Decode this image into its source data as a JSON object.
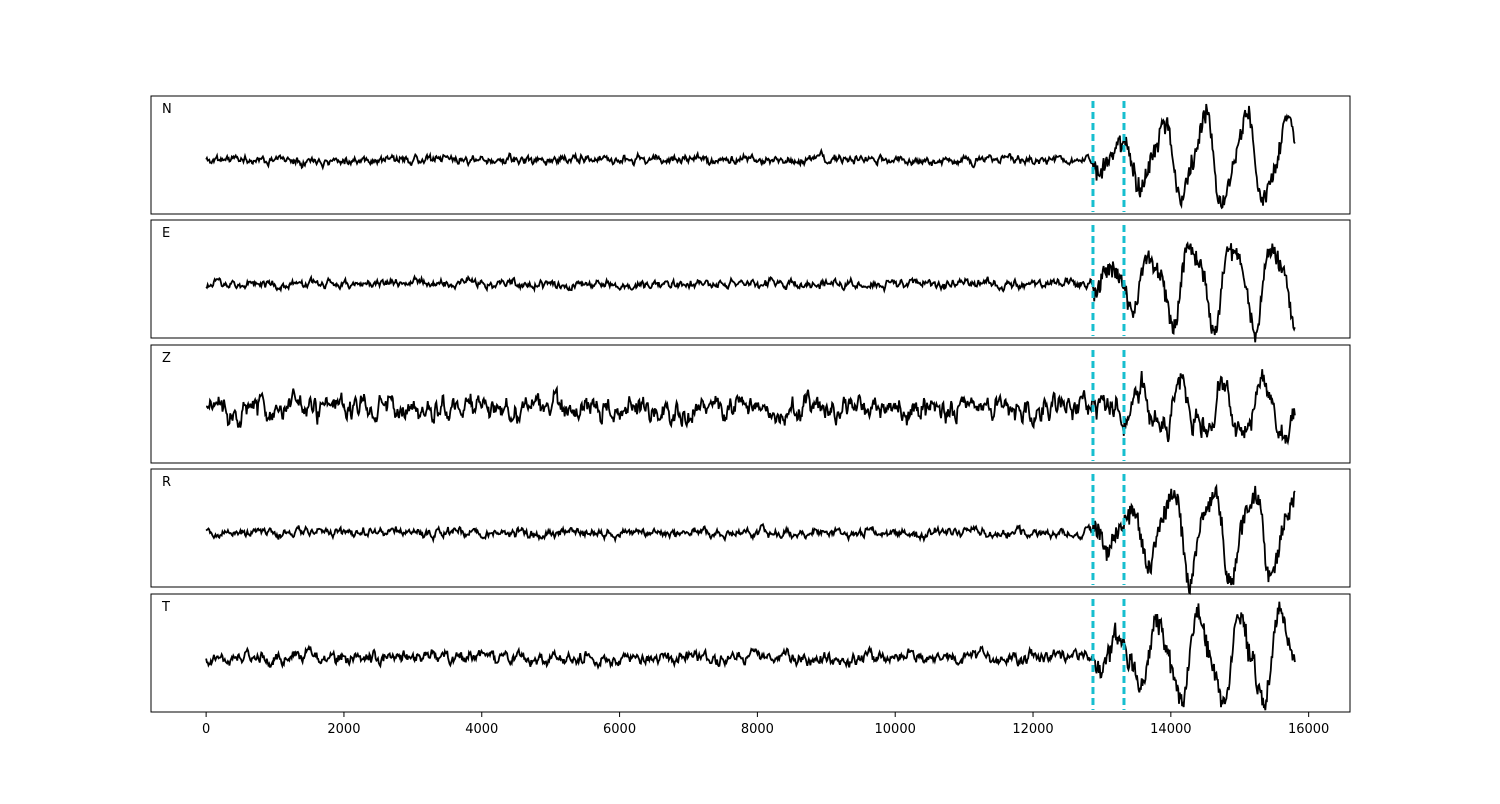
{
  "chart_data": {
    "type": "line",
    "subplots": [
      "N",
      "E",
      "Z",
      "R",
      "T"
    ],
    "x_range": [
      0,
      15800
    ],
    "xlim": [
      -800,
      16600
    ],
    "xticks": [
      0,
      2000,
      4000,
      6000,
      8000,
      10000,
      12000,
      14000,
      16000
    ],
    "xtick_labels": [
      "0",
      "2000",
      "4000",
      "6000",
      "8000",
      "10000",
      "12000",
      "14000",
      "16000"
    ],
    "y_axis_ticks": "none",
    "grid": false,
    "vertical_markers": [
      12870,
      13320
    ],
    "colors": {
      "trace": "#000000",
      "marker": "#17becf",
      "axes": "#000000",
      "background": "#ffffff"
    },
    "traces": [
      {
        "channel": "N",
        "noise_level": 0.16,
        "signal_level": 0.85,
        "seed": 11
      },
      {
        "channel": "E",
        "noise_level": 0.16,
        "signal_level": 0.85,
        "seed": 23
      },
      {
        "channel": "Z",
        "noise_level": 0.62,
        "signal_level": 0.78,
        "seed": 37
      },
      {
        "channel": "R",
        "noise_level": 0.17,
        "signal_level": 0.9,
        "seed": 41
      },
      {
        "channel": "T",
        "noise_level": 0.24,
        "signal_level": 0.9,
        "seed": 59
      }
    ]
  }
}
